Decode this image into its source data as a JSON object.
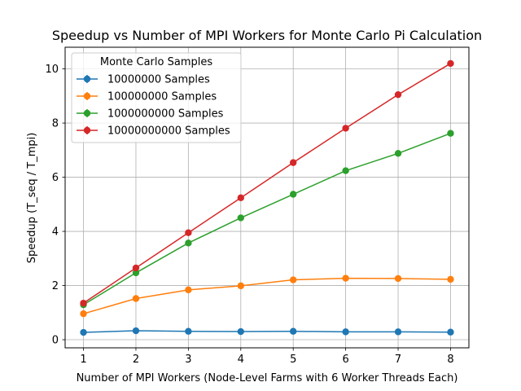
{
  "chart_data": {
    "type": "line",
    "title": "Speedup vs Number of MPI Workers for Monte Carlo Pi Calculation",
    "xlabel": "Number of MPI Workers (Node-Level Farms with 6 Worker Threads Each)",
    "ylabel": "Speedup (T_seq / T_mpi)",
    "x": [
      1,
      2,
      3,
      4,
      5,
      6,
      7,
      8
    ],
    "xlim": [
      0.65,
      8.35
    ],
    "ylim": [
      -0.3,
      10.8
    ],
    "xticks": [
      1,
      2,
      3,
      4,
      5,
      6,
      7,
      8
    ],
    "yticks": [
      0,
      2,
      4,
      6,
      8,
      10
    ],
    "grid": true,
    "legend_title": "Monte Carlo Samples",
    "legend_position": "upper-left",
    "series": [
      {
        "name": "10000000 Samples",
        "color": "#1f77b4",
        "values": [
          0.27,
          0.33,
          0.31,
          0.3,
          0.31,
          0.29,
          0.29,
          0.28
        ]
      },
      {
        "name": "100000000 Samples",
        "color": "#ff7f0e",
        "values": [
          0.96,
          1.52,
          1.84,
          1.99,
          2.21,
          2.27,
          2.26,
          2.23
        ]
      },
      {
        "name": "1000000000 Samples",
        "color": "#2ca02c",
        "values": [
          1.29,
          2.47,
          3.57,
          4.5,
          5.37,
          6.24,
          6.88,
          7.62
        ]
      },
      {
        "name": "10000000000 Samples",
        "color": "#d62728",
        "values": [
          1.35,
          2.65,
          3.95,
          5.24,
          6.54,
          7.81,
          9.05,
          10.2
        ]
      }
    ]
  }
}
